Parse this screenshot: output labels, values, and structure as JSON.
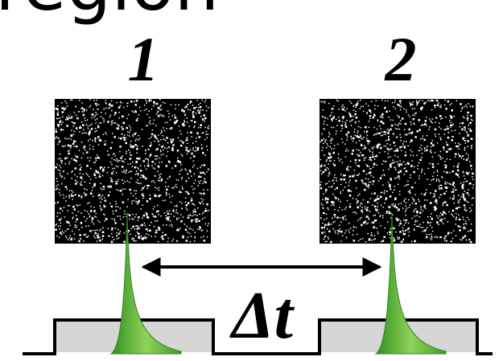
{
  "header": {
    "title": "region"
  },
  "frames": [
    {
      "label": "1"
    },
    {
      "label": "2"
    }
  ],
  "interval": {
    "label": "Δt"
  }
}
